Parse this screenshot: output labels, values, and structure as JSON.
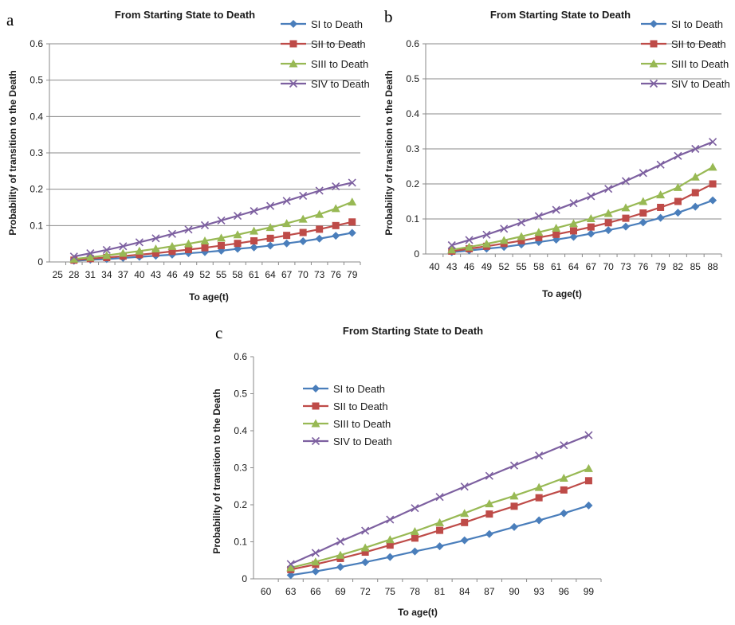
{
  "colors": {
    "SI": "#4a7ebb",
    "SII": "#be4b48",
    "SIII": "#98b954",
    "SIV": "#7d60a0",
    "grid": "#8a8a8a",
    "axis": "#8a8a8a"
  },
  "chart_data": [
    {
      "panel": "a",
      "type": "line",
      "title": "From Starting State to Death",
      "xlabel": "To age(t)",
      "ylabel": "Probability of transition to the Death",
      "ylim": [
        0,
        0.6
      ],
      "yticks": [
        "0",
        "0.1",
        "0.2",
        "0.3",
        "0.4",
        "0.5",
        "0.6"
      ],
      "grid": "horizontal",
      "legend_position": "top-right",
      "categories": [
        "25",
        "28",
        "31",
        "34",
        "37",
        "40",
        "43",
        "46",
        "49",
        "52",
        "55",
        "58",
        "61",
        "64",
        "67",
        "70",
        "73",
        "76",
        "79"
      ],
      "series": [
        {
          "name": "SI to Death",
          "key": "SI",
          "marker": "diamond",
          "values": [
            null,
            0.003,
            0.006,
            0.008,
            0.011,
            0.014,
            0.017,
            0.02,
            0.024,
            0.027,
            0.031,
            0.036,
            0.04,
            0.045,
            0.051,
            0.057,
            0.064,
            0.072,
            0.08
          ]
        },
        {
          "name": "SII to Death",
          "key": "SII",
          "marker": "square",
          "values": [
            null,
            0.005,
            0.009,
            0.012,
            0.016,
            0.02,
            0.024,
            0.029,
            0.034,
            0.039,
            0.045,
            0.051,
            0.058,
            0.065,
            0.073,
            0.081,
            0.09,
            0.1,
            0.11
          ]
        },
        {
          "name": "SIII to Death",
          "key": "SIII",
          "marker": "triangle",
          "values": [
            null,
            0.008,
            0.013,
            0.018,
            0.024,
            0.03,
            0.036,
            0.043,
            0.05,
            0.058,
            0.066,
            0.075,
            0.085,
            0.095,
            0.106,
            0.118,
            0.131,
            0.147,
            0.165
          ]
        },
        {
          "name": "SIV to Death",
          "key": "SIV",
          "marker": "x",
          "values": [
            null,
            0.015,
            0.024,
            0.033,
            0.043,
            0.054,
            0.065,
            0.077,
            0.089,
            0.101,
            0.114,
            0.127,
            0.14,
            0.154,
            0.168,
            0.182,
            0.196,
            0.208,
            0.218
          ]
        }
      ]
    },
    {
      "panel": "b",
      "type": "line",
      "title": "From Starting State to Death",
      "xlabel": "To age(t)",
      "ylabel": "Probability of transition to the Death",
      "ylim": [
        0,
        0.6
      ],
      "yticks": [
        "0",
        "0.1",
        "0.2",
        "0.3",
        "0.4",
        "0.5",
        "0.6"
      ],
      "grid": "horizontal",
      "legend_position": "top-right",
      "categories": [
        "40",
        "43",
        "46",
        "49",
        "52",
        "55",
        "58",
        "61",
        "64",
        "67",
        "70",
        "73",
        "76",
        "79",
        "82",
        "85",
        "88"
      ],
      "series": [
        {
          "name": "SI to Death",
          "key": "SI",
          "marker": "diamond",
          "values": [
            null,
            0.005,
            0.01,
            0.015,
            0.02,
            0.027,
            0.034,
            0.041,
            0.049,
            0.058,
            0.068,
            0.078,
            0.09,
            0.103,
            0.118,
            0.135,
            0.153
          ]
        },
        {
          "name": "SII to Death",
          "key": "SII",
          "marker": "square",
          "values": [
            null,
            0.008,
            0.015,
            0.022,
            0.03,
            0.038,
            0.047,
            0.056,
            0.066,
            0.077,
            0.089,
            0.102,
            0.117,
            0.133,
            0.15,
            0.175,
            0.2
          ]
        },
        {
          "name": "SIII to Death",
          "key": "SIII",
          "marker": "triangle",
          "values": [
            null,
            0.012,
            0.02,
            0.029,
            0.039,
            0.05,
            0.062,
            0.074,
            0.087,
            0.101,
            0.116,
            0.132,
            0.15,
            0.169,
            0.19,
            0.22,
            0.248
          ]
        },
        {
          "name": "SIV to Death",
          "key": "SIV",
          "marker": "x",
          "values": [
            null,
            0.025,
            0.04,
            0.055,
            0.072,
            0.09,
            0.108,
            0.126,
            0.145,
            0.165,
            0.186,
            0.208,
            0.231,
            0.255,
            0.28,
            0.3,
            0.32
          ]
        }
      ]
    },
    {
      "panel": "c",
      "type": "line",
      "title": "From Starting State to Death",
      "xlabel": "To age(t)",
      "ylabel": "Probability of transition to the Death",
      "ylim": [
        0,
        0.6
      ],
      "yticks": [
        "0",
        "0.1",
        "0.2",
        "0.3",
        "0.4",
        "0.5",
        "0.6"
      ],
      "grid": "none",
      "legend_position": "top-left",
      "categories": [
        "60",
        "63",
        "66",
        "69",
        "72",
        "75",
        "78",
        "81",
        "84",
        "87",
        "90",
        "93",
        "96",
        "99"
      ],
      "series": [
        {
          "name": "SI to Death",
          "key": "SI",
          "marker": "diamond",
          "values": [
            null,
            0.01,
            0.02,
            0.032,
            0.045,
            0.059,
            0.074,
            0.088,
            0.104,
            0.121,
            0.14,
            0.158,
            0.177,
            0.198
          ]
        },
        {
          "name": "SII to Death",
          "key": "SII",
          "marker": "square",
          "values": [
            null,
            0.025,
            0.039,
            0.055,
            0.072,
            0.091,
            0.11,
            0.131,
            0.152,
            0.175,
            0.196,
            0.219,
            0.24,
            0.265
          ]
        },
        {
          "name": "SIII to Death",
          "key": "SIII",
          "marker": "triangle",
          "values": [
            null,
            0.03,
            0.046,
            0.064,
            0.084,
            0.106,
            0.128,
            0.152,
            0.177,
            0.203,
            0.224,
            0.247,
            0.272,
            0.298
          ]
        },
        {
          "name": "SIV to Death",
          "key": "SIV",
          "marker": "x",
          "values": [
            null,
            0.04,
            0.07,
            0.101,
            0.13,
            0.16,
            0.191,
            0.221,
            0.249,
            0.278,
            0.306,
            0.333,
            0.361,
            0.388
          ]
        }
      ]
    }
  ]
}
